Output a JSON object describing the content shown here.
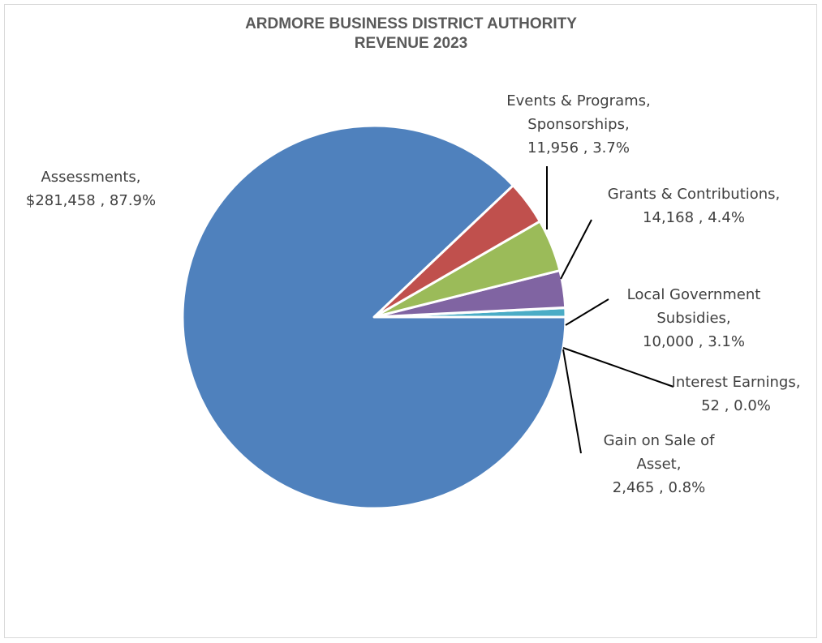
{
  "chart_data": {
    "type": "pie",
    "title": [
      "ARDMORE BUSINESS DISTRICT AUTHORITY",
      "REVENUE 2023"
    ],
    "start_angle_deg": 0,
    "direction": "counterclockwise",
    "slices": [
      {
        "name": "Gain on Sale of Asset",
        "value": 2465,
        "percent": "0.8%",
        "value_label": "2,465",
        "color": "#4bacc6",
        "label_lines": [
          "Gain on Sale of",
          "Asset,",
          "2,465 , 0.8%"
        ]
      },
      {
        "name": "Interest Earnings",
        "value": 52,
        "percent": "0.0%",
        "value_label": "52",
        "color": "#f79646",
        "label_lines": [
          "Interest Earnings,",
          "52 , 0.0%"
        ]
      },
      {
        "name": "Local Government Subsidies",
        "value": 10000,
        "percent": "3.1%",
        "value_label": "10,000",
        "color": "#8064a2",
        "label_lines": [
          "Local Government",
          "Subsidies,",
          "10,000 , 3.1%"
        ]
      },
      {
        "name": "Grants & Contributions",
        "value": 14168,
        "percent": "4.4%",
        "value_label": "14,168",
        "color": "#9bbb59",
        "label_lines": [
          "Grants & Contributions,",
          "14,168 , 4.4%"
        ]
      },
      {
        "name": "Events & Programs, Sponsorships",
        "value": 11956,
        "percent": "3.7%",
        "value_label": "11,956",
        "color": "#c0504d",
        "label_lines": [
          "Events & Programs,",
          "Sponsorships,",
          "11,956 , 3.7%"
        ]
      },
      {
        "name": "Assessments",
        "value": 281458,
        "percent": "87.9%",
        "value_label": "$281,458",
        "color": "#4f81bd",
        "label_lines": [
          "Assessments,",
          "$281,458 , 87.9%"
        ]
      }
    ],
    "legend": "none",
    "data_labels": "outside with leader lines"
  }
}
